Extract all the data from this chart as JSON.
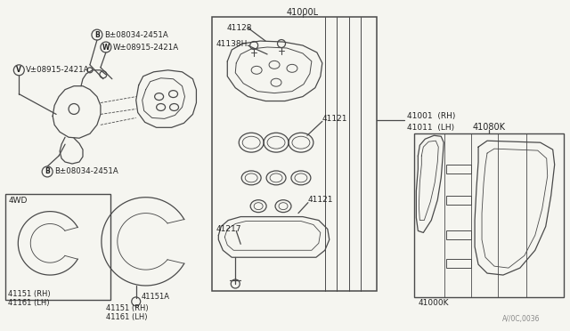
{
  "bg_color": "#f5f5f0",
  "line_color": "#4a4a4a",
  "text_color": "#222222",
  "fig_width": 6.4,
  "fig_height": 3.72,
  "dpi": 100,
  "labels": {
    "B08034_top": "B±08034-2451A",
    "W08915_top": "W±08915-2421A",
    "V08915_left": "V±08915-2421A",
    "B08034_bot": "B±08034-2451A",
    "label_41128": "41128",
    "label_41138H": "41138H",
    "label_41000L": "41000L",
    "label_41001": "41001  (RH)",
    "label_41011": "41011  (LH)",
    "label_41121a": "41121",
    "label_41121b": "41121",
    "label_41217": "41217",
    "label_4WD": "4WD",
    "label_41151_RH_left": "41151 (RH)",
    "label_41161_LH_left": "41161 (LH)",
    "label_41151A": "41151A",
    "label_41151_RH_mid": "41151 (RH)",
    "label_41161_LH_mid": "41161 (LH)",
    "label_41080K": "41080K",
    "label_41000K": "41000K",
    "label_A1": "A//0C,0036"
  }
}
